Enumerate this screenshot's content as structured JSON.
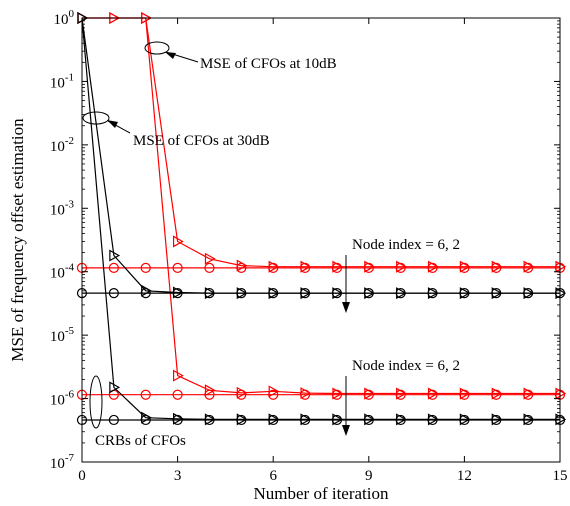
{
  "chart_data": {
    "type": "line",
    "title": "",
    "xlabel": "Number of iteration",
    "ylabel": "MSE of frequency offset estimation",
    "xlim": [
      0,
      15
    ],
    "ylim": [
      1e-07,
      1
    ],
    "yscale": "log",
    "grid": false,
    "x": [
      0,
      1,
      2,
      3,
      4,
      5,
      6,
      7,
      8,
      9,
      10,
      11,
      12,
      13,
      14,
      15
    ],
    "x_ticks": [
      "0",
      "3",
      "6",
      "9",
      "12",
      "15"
    ],
    "y_ticks": [
      {
        "base": "10",
        "exp": "-7"
      },
      {
        "base": "10",
        "exp": "-6"
      },
      {
        "base": "10",
        "exp": "-5"
      },
      {
        "base": "10",
        "exp": "-4"
      },
      {
        "base": "10",
        "exp": "-3"
      },
      {
        "base": "10",
        "exp": "-2"
      },
      {
        "base": "10",
        "exp": "-1"
      },
      {
        "base": "10",
        "exp": "0"
      }
    ],
    "series": [
      {
        "color": "#ff0000",
        "marker": "triangle-right",
        "values": [
          1,
          1,
          1,
          0.0003,
          0.00016,
          0.000125,
          0.00012,
          0.00012,
          0.00012,
          0.00012,
          0.00012,
          0.00012,
          0.00012,
          0.00012,
          0.00012,
          0.00012
        ]
      },
      {
        "color": "#ff0000",
        "marker": "triangle-right",
        "values": [
          1,
          1,
          1,
          2.3e-06,
          1.35e-06,
          1.23e-06,
          1.3e-06,
          1.22e-06,
          1.2e-06,
          1.2e-06,
          1.2e-06,
          1.2e-06,
          1.2e-06,
          1.2e-06,
          1.2e-06,
          1.2e-06
        ]
      },
      {
        "color": "#ff0000",
        "marker": "circle",
        "values": [
          0.000115,
          0.000115,
          0.000115,
          0.000115,
          0.000115,
          0.000115,
          0.000115,
          0.000115,
          0.000115,
          0.000115,
          0.000115,
          0.000115,
          0.000115,
          0.000115,
          0.000115,
          0.000115
        ]
      },
      {
        "color": "#ff0000",
        "marker": "circle",
        "values": [
          1.15e-06,
          1.15e-06,
          1.15e-06,
          1.15e-06,
          1.15e-06,
          1.15e-06,
          1.15e-06,
          1.15e-06,
          1.15e-06,
          1.15e-06,
          1.15e-06,
          1.15e-06,
          1.15e-06,
          1.15e-06,
          1.15e-06,
          1.15e-06
        ]
      },
      {
        "color": "#000000",
        "marker": "triangle-right",
        "values": [
          1,
          0.00018,
          5e-05,
          4.7e-05,
          4.6e-05,
          4.6e-05,
          4.6e-05,
          4.6e-05,
          4.6e-05,
          4.6e-05,
          4.6e-05,
          4.6e-05,
          4.6e-05,
          4.6e-05,
          4.6e-05,
          4.6e-05
        ]
      },
      {
        "color": "#000000",
        "marker": "triangle-right",
        "values": [
          1,
          1.5e-06,
          5e-07,
          4.8e-07,
          4.7e-07,
          4.7e-07,
          4.7e-07,
          4.7e-07,
          4.7e-07,
          4.7e-07,
          4.7e-07,
          4.7e-07,
          4.7e-07,
          4.7e-07,
          4.7e-07,
          4.7e-07
        ]
      },
      {
        "color": "#000000",
        "marker": "circle",
        "values": [
          4.6e-05,
          4.6e-05,
          4.6e-05,
          4.6e-05,
          4.6e-05,
          4.6e-05,
          4.6e-05,
          4.6e-05,
          4.6e-05,
          4.6e-05,
          4.6e-05,
          4.6e-05,
          4.6e-05,
          4.6e-05,
          4.6e-05,
          4.6e-05
        ]
      },
      {
        "color": "#000000",
        "marker": "circle",
        "values": [
          4.6e-07,
          4.6e-07,
          4.6e-07,
          4.6e-07,
          4.6e-07,
          4.6e-07,
          4.6e-07,
          4.6e-07,
          4.6e-07,
          4.6e-07,
          4.6e-07,
          4.6e-07,
          4.6e-07,
          4.6e-07,
          4.6e-07,
          4.6e-07
        ]
      }
    ],
    "annotations": {
      "mse_10db": "MSE of CFOs at 10dB",
      "mse_30db": "MSE of CFOs at 30dB",
      "node_index_upper": "Node index = 6, 2",
      "node_index_lower": "Node index = 6, 2",
      "crbs": "CRBs of CFOs"
    }
  }
}
